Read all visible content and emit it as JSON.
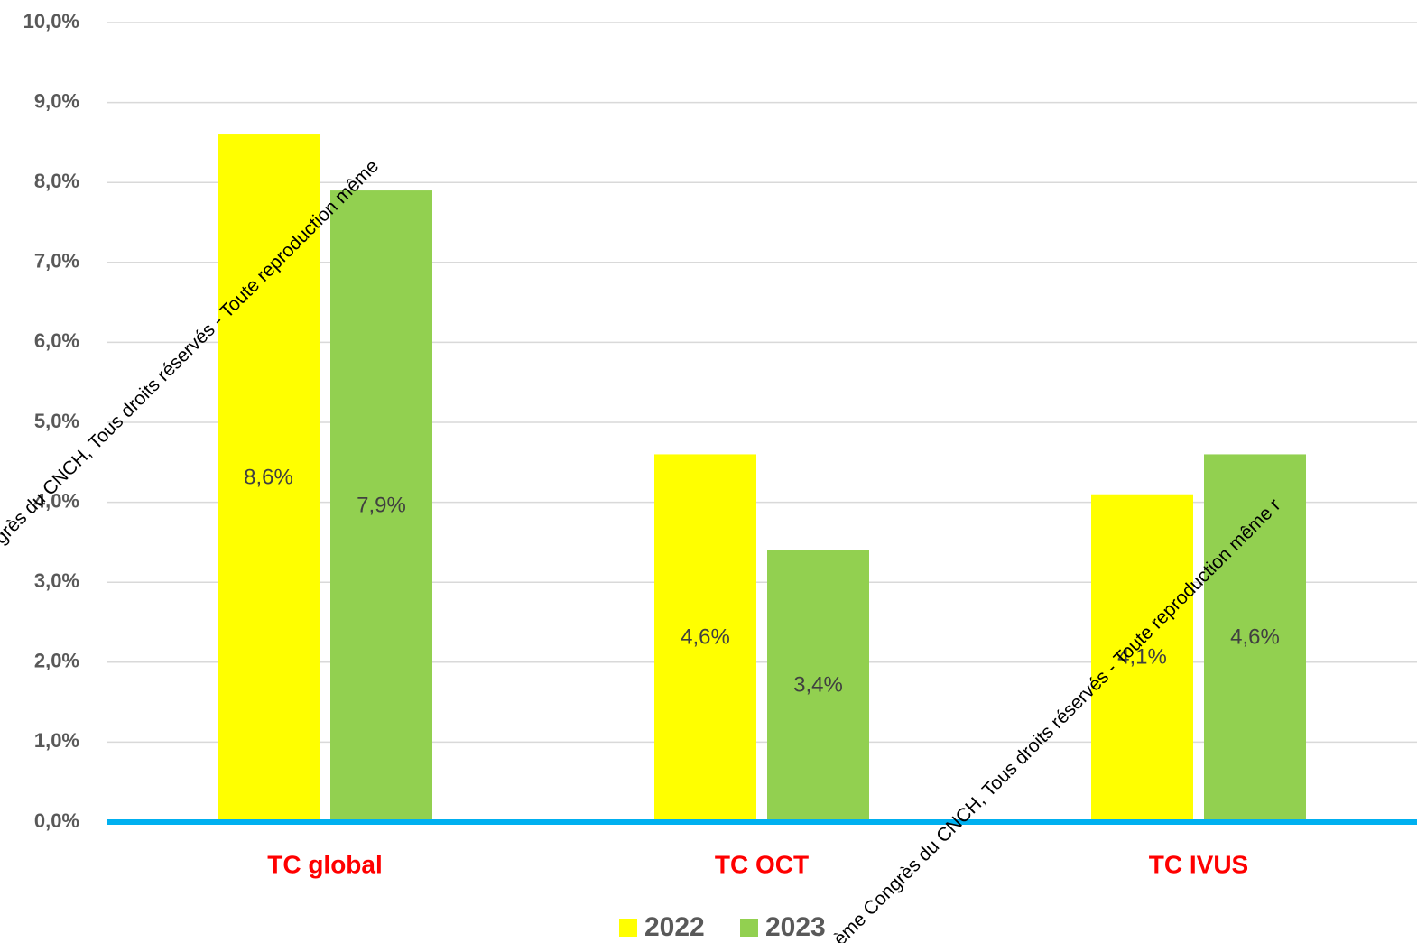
{
  "chart_data": {
    "type": "bar",
    "categories": [
      "TC global",
      "TC OCT",
      "TC IVUS"
    ],
    "series": [
      {
        "name": "2022",
        "color": "#ffff00",
        "values": [
          8.6,
          4.6,
          4.1
        ],
        "value_labels": [
          "8,6%",
          "4,6%",
          "4,1%"
        ]
      },
      {
        "name": "2023",
        "color": "#92d050",
        "values": [
          7.9,
          3.4,
          4.6
        ],
        "value_labels": [
          "7,9%",
          "3,4%",
          "4,6%"
        ]
      }
    ],
    "ylim": [
      0,
      10
    ],
    "yticks": [
      {
        "value": 0,
        "label": "0,0%"
      },
      {
        "value": 1,
        "label": "1,0%"
      },
      {
        "value": 2,
        "label": "2,0%"
      },
      {
        "value": 3,
        "label": "3,0%"
      },
      {
        "value": 4,
        "label": "4,0%"
      },
      {
        "value": 5,
        "label": "5,0%"
      },
      {
        "value": 6,
        "label": "6,0%"
      },
      {
        "value": 7,
        "label": "7,0%"
      },
      {
        "value": 8,
        "label": "8,0%"
      },
      {
        "value": 9,
        "label": "9,0%"
      },
      {
        "value": 10,
        "label": "10,0%"
      }
    ],
    "grid": true,
    "legend": "bottom",
    "annotations": [
      "grès du CNCH, Tous droits réservés - Toute reproduction même",
      "ème Congrès du CNCH, Tous droits réservés - Toute reproduction même r"
    ]
  }
}
